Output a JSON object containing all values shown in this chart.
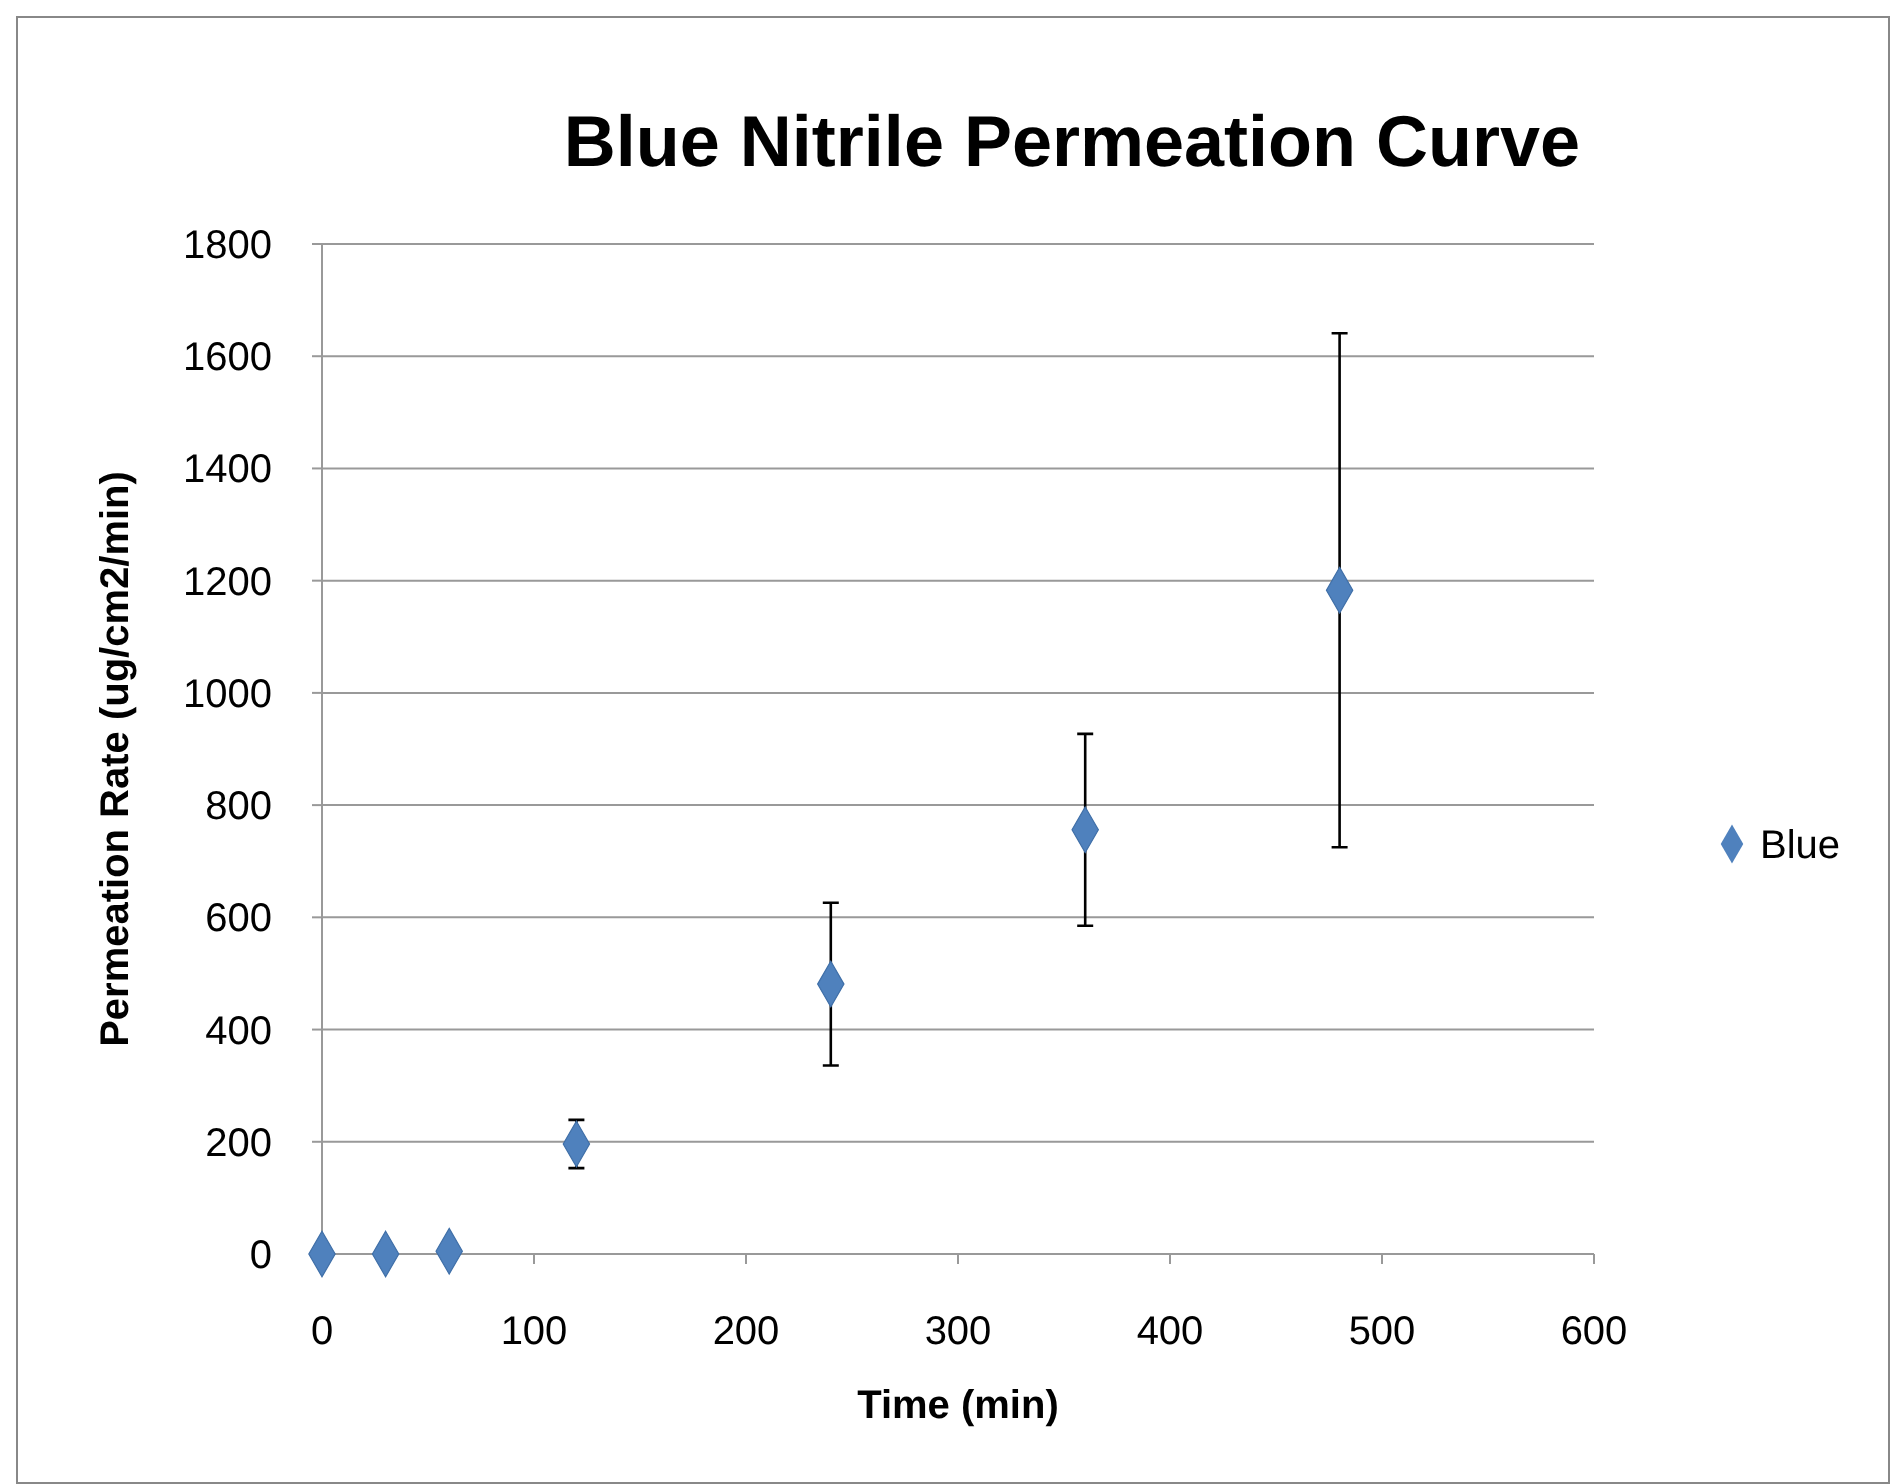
{
  "chart_data": {
    "type": "scatter",
    "title": "Blue Nitrile Permeation Curve",
    "xlabel": "Time (min)",
    "ylabel": "Permeation Rate (ug/cm2/min)",
    "x": [
      0,
      30,
      60,
      120,
      240,
      360,
      480
    ],
    "series": [
      {
        "name": "Blue",
        "color": "#4f81bd",
        "values": [
          0,
          0,
          5,
          196,
          481,
          756,
          1183
        ],
        "errors": [
          null,
          null,
          null,
          43,
          145,
          171,
          458
        ]
      }
    ],
    "xlim": [
      0,
      600
    ],
    "xticks": [
      0,
      100,
      200,
      300,
      400,
      500,
      600
    ],
    "ylim": [
      0,
      1800
    ],
    "yticks": [
      0,
      200,
      400,
      600,
      800,
      1000,
      1200,
      1400,
      1600,
      1800
    ],
    "grid": "y",
    "legend": "right",
    "marker": "diamond"
  }
}
